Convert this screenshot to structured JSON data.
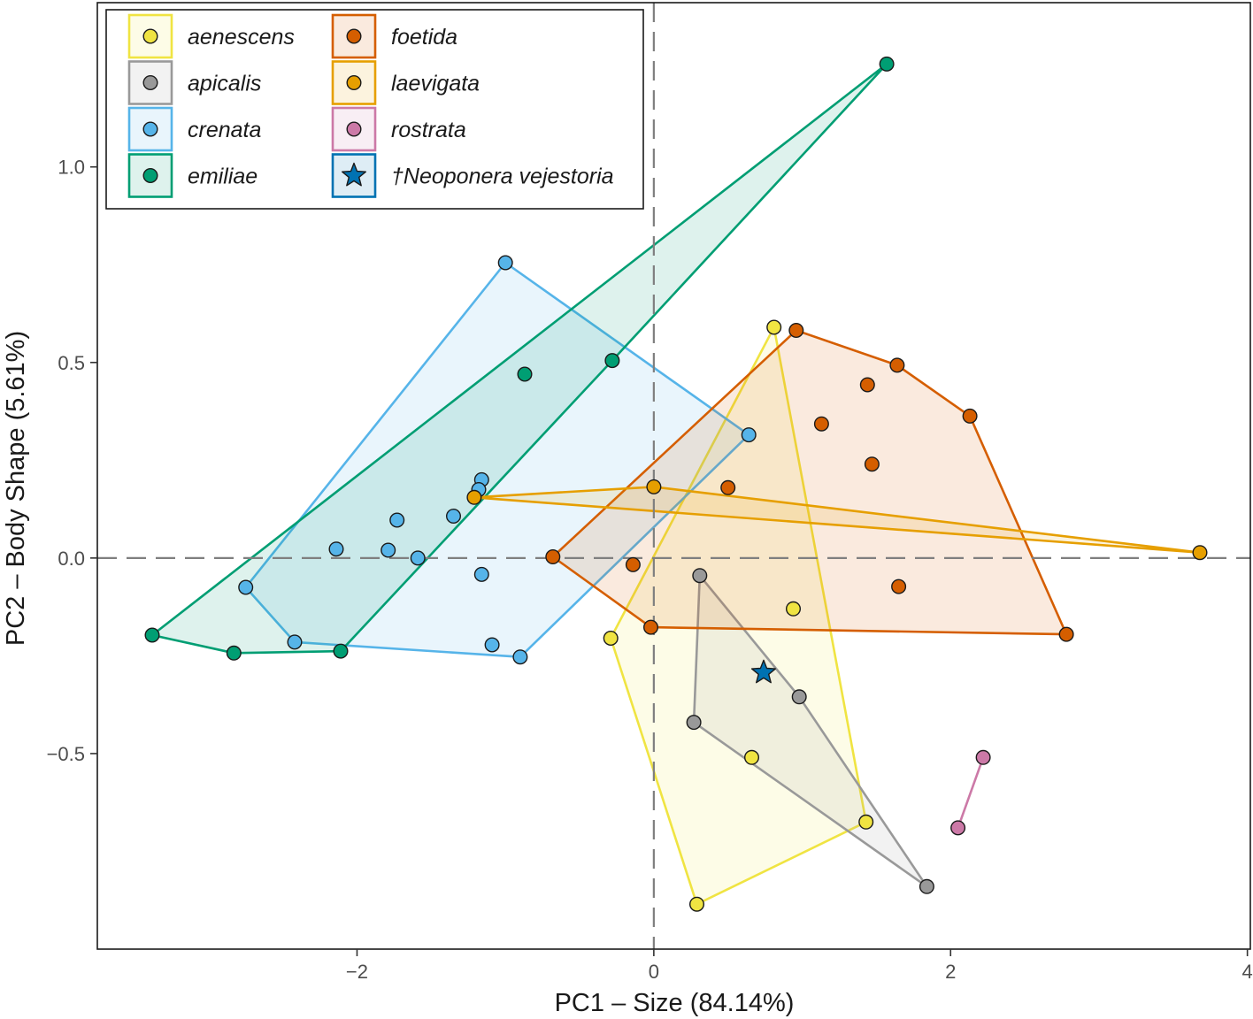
{
  "chart_data": {
    "type": "scatter",
    "subtype": "pca-convex-hulls",
    "xlabel": "PC1 – Size (84.14%)",
    "ylabel": "PC2 – Body Shape (5.61%)",
    "xlim": [
      -3.75,
      4.02
    ],
    "ylim": [
      -1.0,
      1.42
    ],
    "xticks": [
      -2,
      0,
      2,
      4
    ],
    "xtick_labels": [
      "−2",
      "0",
      "2",
      "4"
    ],
    "yticks": [
      -0.5,
      0.0,
      0.5,
      1.0
    ],
    "ytick_labels": [
      "−0.5",
      "0.0",
      "0.5",
      "1.0"
    ],
    "reference_lines": {
      "x": 0,
      "y": 0,
      "style": "dashed"
    },
    "legend_position": "top-left",
    "series": [
      {
        "name": "aenescens",
        "color": "#f0e442",
        "points": [
          [
            0.81,
            0.59
          ],
          [
            0.94,
            -0.13
          ],
          [
            -0.29,
            -0.205
          ],
          [
            0.66,
            -0.51
          ],
          [
            1.43,
            -0.675
          ],
          [
            0.29,
            -0.885
          ]
        ]
      },
      {
        "name": "apicalis",
        "color": "#999999",
        "points": [
          [
            0.31,
            -0.045
          ],
          [
            0.98,
            -0.355
          ],
          [
            0.27,
            -0.42
          ],
          [
            1.84,
            -0.84
          ]
        ]
      },
      {
        "name": "crenata",
        "color": "#56b4e9",
        "points": [
          [
            -1.0,
            0.755
          ],
          [
            0.64,
            0.315
          ],
          [
            -1.16,
            0.2
          ],
          [
            -1.18,
            0.175
          ],
          [
            -1.35,
            0.107
          ],
          [
            -1.73,
            0.097
          ],
          [
            -2.14,
            0.023
          ],
          [
            -1.79,
            0.02
          ],
          [
            -1.59,
            0.0
          ],
          [
            -1.16,
            -0.042
          ],
          [
            -2.75,
            -0.075
          ],
          [
            -2.42,
            -0.215
          ],
          [
            -1.09,
            -0.222
          ],
          [
            -0.9,
            -0.253
          ]
        ]
      },
      {
        "name": "emiliae",
        "color": "#009e73",
        "points": [
          [
            1.57,
            1.263
          ],
          [
            -0.28,
            0.505
          ],
          [
            -0.87,
            0.47
          ],
          [
            -3.38,
            -0.197
          ],
          [
            -2.83,
            -0.243
          ],
          [
            -2.11,
            -0.238
          ]
        ]
      },
      {
        "name": "foetida",
        "color": "#d55e00",
        "points": [
          [
            0.96,
            0.582
          ],
          [
            1.64,
            0.493
          ],
          [
            1.44,
            0.443
          ],
          [
            2.13,
            0.363
          ],
          [
            1.13,
            0.343
          ],
          [
            1.47,
            0.24
          ],
          [
            0.5,
            0.18
          ],
          [
            -0.68,
            0.003
          ],
          [
            -0.14,
            -0.017
          ],
          [
            1.65,
            -0.073
          ],
          [
            -0.02,
            -0.177
          ],
          [
            2.78,
            -0.195
          ]
        ]
      },
      {
        "name": "laevigata",
        "color": "#e69f00",
        "points": [
          [
            0.0,
            0.182
          ],
          [
            -1.21,
            0.155
          ],
          [
            3.68,
            0.014
          ]
        ]
      },
      {
        "name": "rostrata",
        "color": "#cc79a7",
        "points": [
          [
            2.22,
            -0.51
          ],
          [
            2.05,
            -0.69
          ]
        ]
      }
    ],
    "fossil": {
      "name": "†Neoponera vejestoria",
      "color": "#0072b2",
      "marker": "star",
      "point": [
        0.74,
        -0.293
      ]
    },
    "legend": [
      {
        "label": "aenescens",
        "color": "#f0e442",
        "marker": "circle"
      },
      {
        "label": "apicalis",
        "color": "#999999",
        "marker": "circle"
      },
      {
        "label": "crenata",
        "color": "#56b4e9",
        "marker": "circle"
      },
      {
        "label": "emiliae",
        "color": "#009e73",
        "marker": "circle"
      },
      {
        "label": "foetida",
        "color": "#d55e00",
        "marker": "circle"
      },
      {
        "label": "laevigata",
        "color": "#e69f00",
        "marker": "circle"
      },
      {
        "label": "rostrata",
        "color": "#cc79a7",
        "marker": "circle"
      },
      {
        "label": "†Neoponera vejestoria",
        "color": "#0072b2",
        "marker": "star"
      }
    ]
  }
}
